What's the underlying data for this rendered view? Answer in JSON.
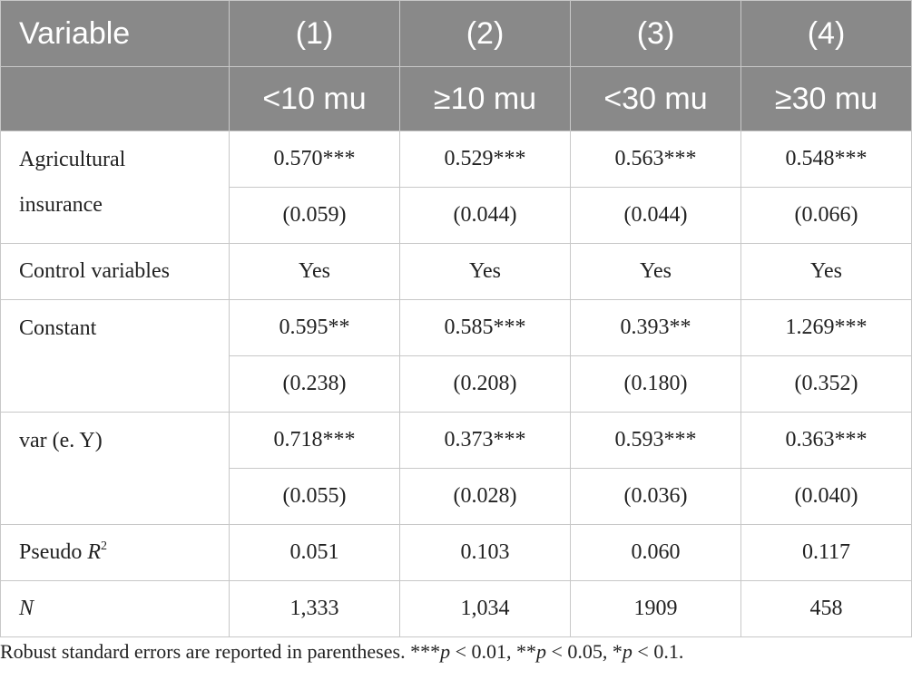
{
  "header": {
    "variable_label": "Variable",
    "model_numbers": [
      "(1)",
      "(2)",
      "(3)",
      "(4)"
    ],
    "groups": [
      "<10 mu",
      "≥10 mu",
      "<30 mu",
      "≥30 mu"
    ]
  },
  "rows": {
    "agri_insurance": {
      "label_line1": "Agricultural",
      "label_line2": "insurance",
      "coef": [
        "0.570***",
        "0.529***",
        "0.563***",
        "0.548***"
      ],
      "se": [
        "(0.059)",
        "(0.044)",
        "(0.044)",
        "(0.066)"
      ]
    },
    "controls": {
      "label": "Control variables",
      "values": [
        "Yes",
        "Yes",
        "Yes",
        "Yes"
      ]
    },
    "constant": {
      "label": "Constant",
      "coef": [
        "0.595**",
        "0.585***",
        "0.393**",
        "1.269***"
      ],
      "se": [
        "(0.238)",
        "(0.208)",
        "(0.180)",
        "(0.352)"
      ]
    },
    "var_ey": {
      "label": "var (e. Y)",
      "coef": [
        "0.718***",
        "0.373***",
        "0.593***",
        "0.363***"
      ],
      "se": [
        "(0.055)",
        "(0.028)",
        "(0.036)",
        "(0.040)"
      ]
    },
    "pseudo_r2": {
      "label_prefix": "Pseudo ",
      "label_symbol": "R",
      "label_sup": "2",
      "values": [
        "0.051",
        "0.103",
        "0.060",
        "0.117"
      ]
    },
    "n": {
      "label": "N",
      "values": [
        "1,333",
        "1,034",
        "1909",
        "458"
      ]
    }
  },
  "note": {
    "text_start": "Robust standard errors are reported in parentheses. ***",
    "p1": "p",
    "t1": " < 0.01, **",
    "p2": "p",
    "t2": " < 0.05, *",
    "p3": "p",
    "t3": " < 0.1."
  }
}
